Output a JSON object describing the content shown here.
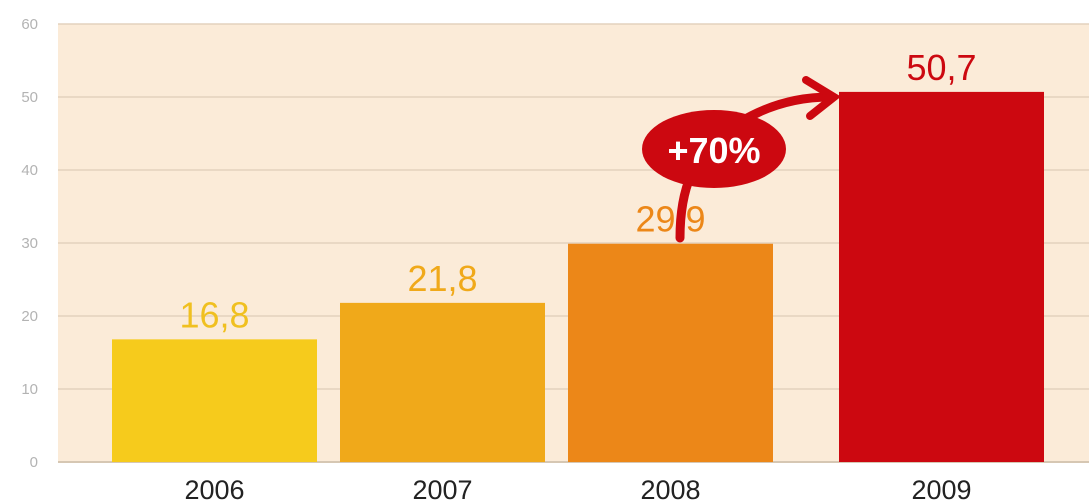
{
  "chart_data": {
    "type": "bar",
    "categories": [
      "2006",
      "2007",
      "2008",
      "2009"
    ],
    "values": [
      16.8,
      21.8,
      29.9,
      50.7
    ],
    "value_labels": [
      "16,8",
      "21,8",
      "29,9",
      "50,7"
    ],
    "ylim": [
      0,
      60
    ],
    "yticks": [
      "0",
      "10",
      "20",
      "30",
      "40",
      "50",
      "60"
    ],
    "grid": true,
    "colors": [
      "#f6cb1c",
      "#f0a91a",
      "#ec8718",
      "#cc0810"
    ],
    "label_colors": [
      "#f0c020",
      "#f0a91a",
      "#ec8718",
      "#cc0810"
    ],
    "background": "#fbebd8",
    "annotation": {
      "text": "+70%",
      "from": "2008",
      "to": "2009",
      "color": "#cc0810"
    }
  }
}
